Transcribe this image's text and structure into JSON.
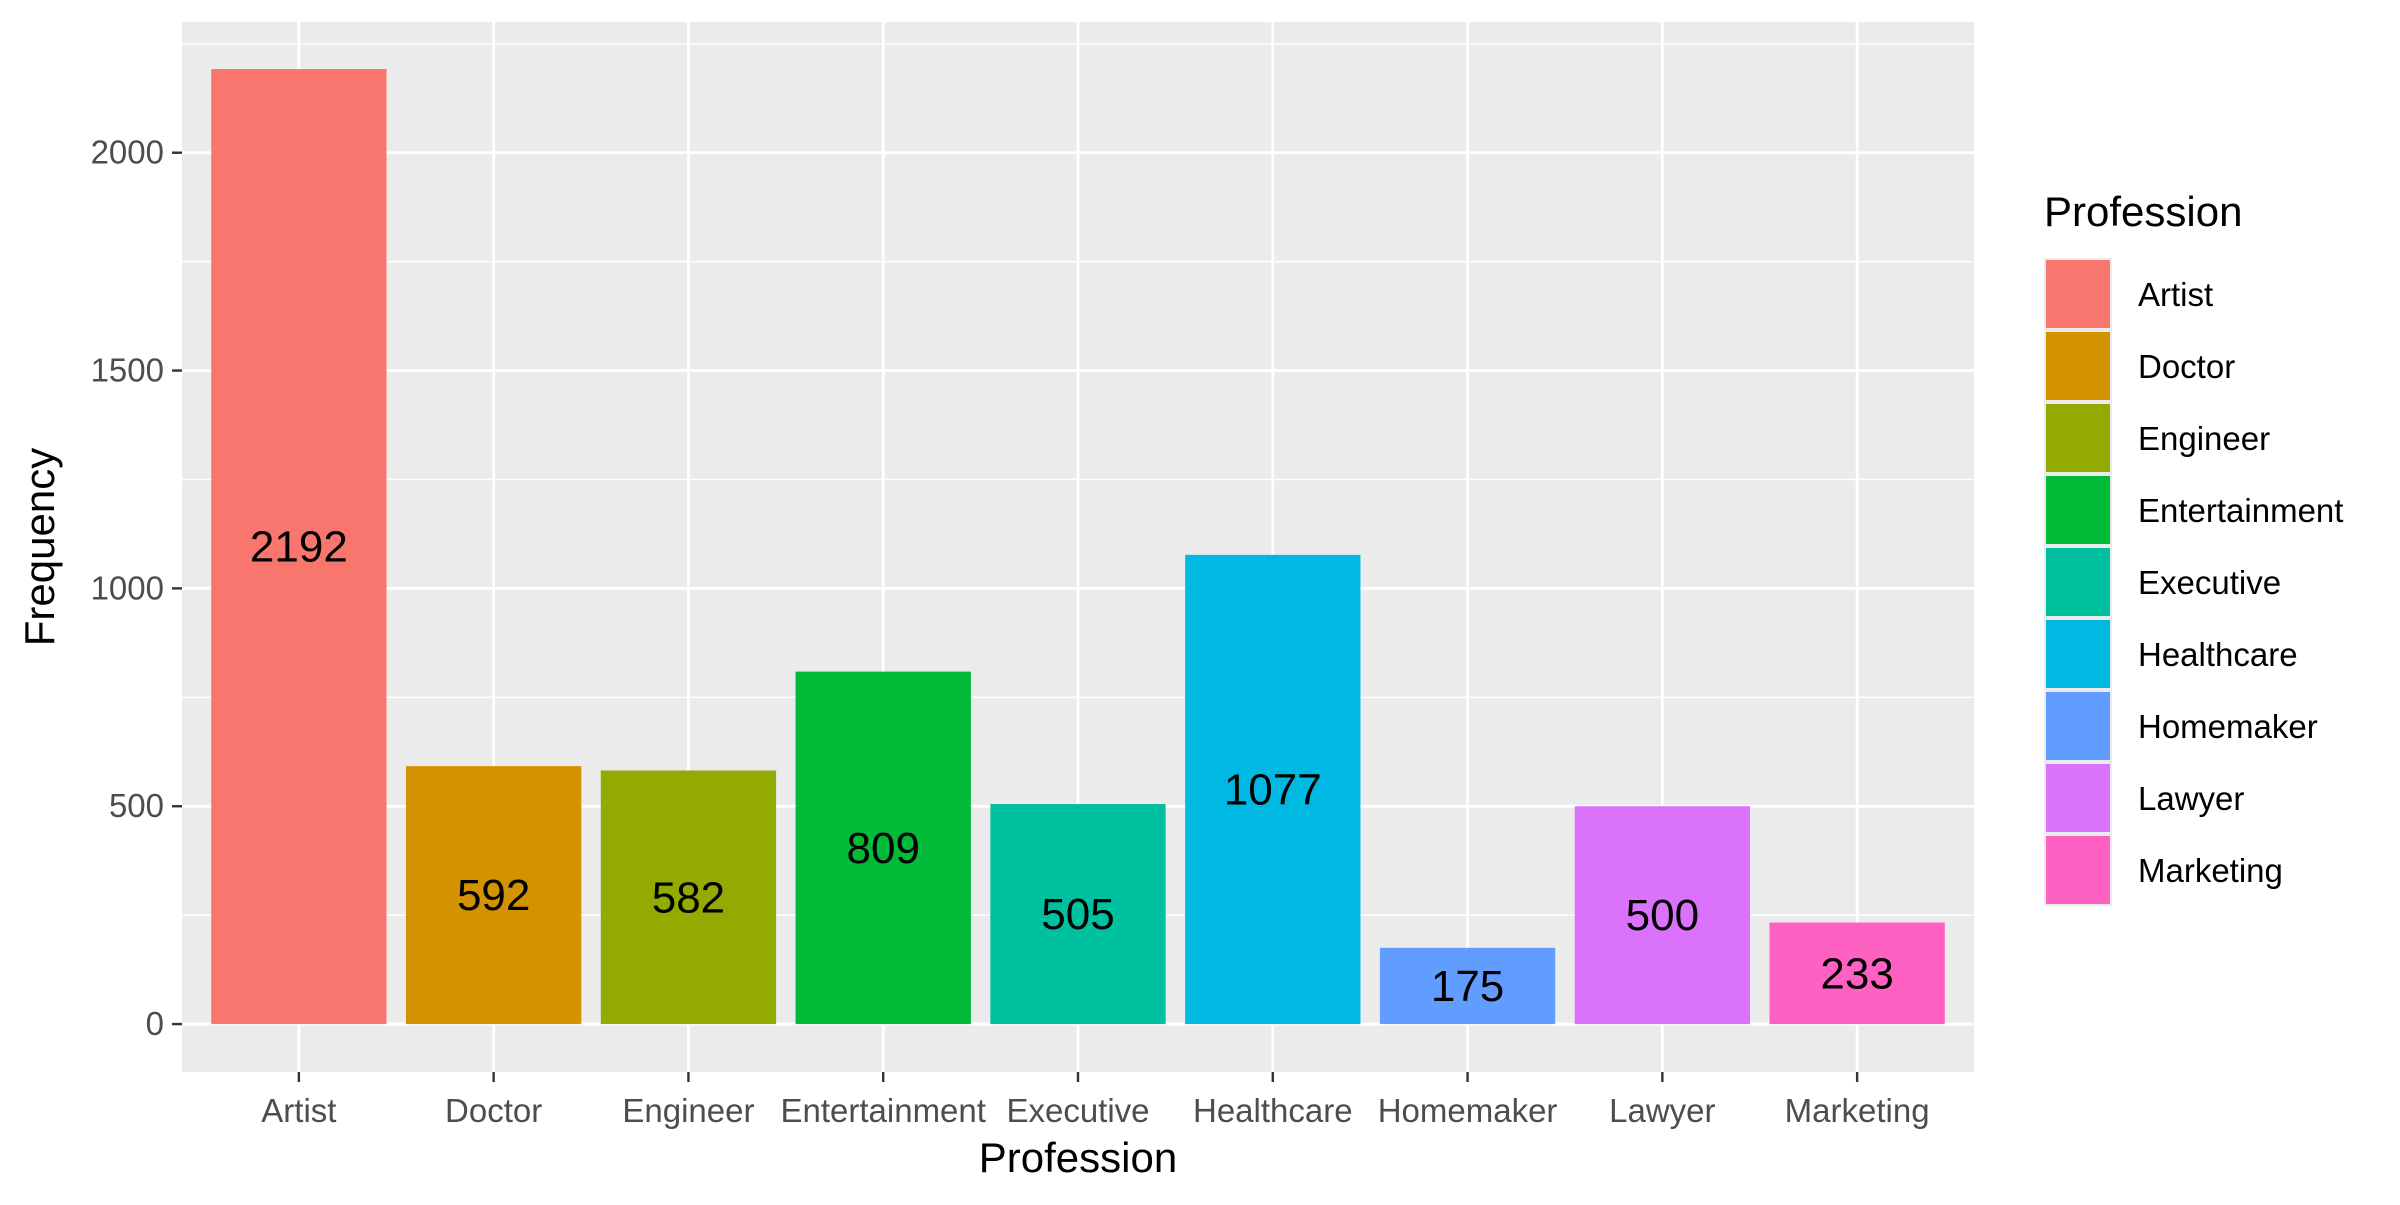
{
  "chart_data": {
    "type": "bar",
    "categories": [
      "Artist",
      "Doctor",
      "Engineer",
      "Entertainment",
      "Executive",
      "Healthcare",
      "Homemaker",
      "Lawyer",
      "Marketing"
    ],
    "values": [
      2192,
      592,
      582,
      809,
      505,
      1077,
      175,
      500,
      233
    ],
    "colors": [
      "#F8766D",
      "#D39200",
      "#93AA00",
      "#00BA38",
      "#00C19F",
      "#00B9E3",
      "#619CFF",
      "#DB72FB",
      "#FF61C3"
    ],
    "xlabel": "Profession",
    "ylabel": "Frequency",
    "ylim": [
      -110,
      2300
    ],
    "yticks": [
      0,
      500,
      1000,
      1500,
      2000
    ],
    "grid": true,
    "legend": {
      "title": "Profession",
      "placement": "right",
      "entries": [
        "Artist",
        "Doctor",
        "Engineer",
        "Entertainment",
        "Executive",
        "Healthcare",
        "Homemaker",
        "Lawyer",
        "Marketing"
      ]
    },
    "panel_background": "#EBEBEB",
    "gridline_color": "#FFFFFF"
  }
}
